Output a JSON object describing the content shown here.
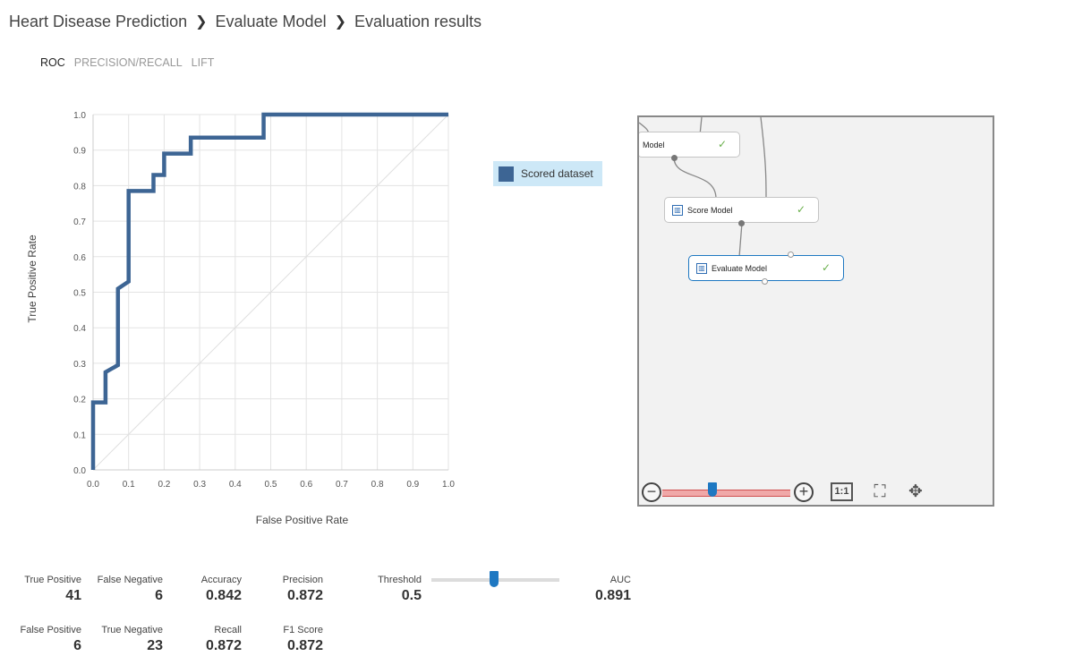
{
  "breadcrumb": {
    "items": [
      "Heart Disease Prediction",
      "Evaluate Model",
      "Evaluation results"
    ],
    "separator": "❯"
  },
  "tabs": [
    {
      "label": "ROC",
      "active": true
    },
    {
      "label": "PRECISION/RECALL",
      "active": false
    },
    {
      "label": "LIFT",
      "active": false
    }
  ],
  "legend": {
    "label": "Scored dataset",
    "color": "#3d6594"
  },
  "chart_data": {
    "type": "line",
    "title": "",
    "xlabel": "False Positive Rate",
    "ylabel": "True Positive Rate",
    "xlim": [
      0,
      1
    ],
    "ylim": [
      0,
      1
    ],
    "xticks": [
      "0.0",
      "0.1",
      "0.2",
      "0.3",
      "0.4",
      "0.5",
      "0.6",
      "0.7",
      "0.8",
      "0.9",
      "1.0"
    ],
    "yticks": [
      "0.0",
      "0.1",
      "0.2",
      "0.3",
      "0.4",
      "0.5",
      "0.6",
      "0.7",
      "0.8",
      "0.9",
      "1.0"
    ],
    "grid": true,
    "series": [
      {
        "name": "Scored dataset",
        "color": "#3d6594",
        "x": [
          0.0,
          0.0,
          0.035,
          0.035,
          0.07,
          0.07,
          0.1,
          0.1,
          0.17,
          0.17,
          0.2,
          0.2,
          0.275,
          0.275,
          0.48,
          0.48,
          1.0
        ],
        "y": [
          0.0,
          0.19,
          0.19,
          0.275,
          0.295,
          0.51,
          0.53,
          0.785,
          0.785,
          0.83,
          0.83,
          0.89,
          0.89,
          0.935,
          0.935,
          1.0,
          1.0
        ]
      }
    ],
    "diagonal": true
  },
  "canvas": {
    "nodes": [
      {
        "label": "Model",
        "icon": "model-icon",
        "status": "✓"
      },
      {
        "label": "Score Model",
        "icon": "score-model-icon",
        "status": "✓"
      },
      {
        "label": "Evaluate Model",
        "icon": "evaluate-model-icon",
        "status": "✓"
      }
    ],
    "zoom": {
      "minus": "−",
      "plus": "+",
      "one_to_one": "1:1",
      "fit_icon": "fit-to-screen-icon",
      "pan_icon": "pan-icon"
    }
  },
  "metrics": {
    "true_positive": {
      "label": "True Positive",
      "value": "41"
    },
    "false_negative": {
      "label": "False Negative",
      "value": "6"
    },
    "accuracy": {
      "label": "Accuracy",
      "value": "0.842"
    },
    "precision": {
      "label": "Precision",
      "value": "0.872"
    },
    "false_positive": {
      "label": "False Positive",
      "value": "6"
    },
    "true_negative": {
      "label": "True Negative",
      "value": "23"
    },
    "recall": {
      "label": "Recall",
      "value": "0.872"
    },
    "f1_score": {
      "label": "F1 Score",
      "value": "0.872"
    },
    "threshold": {
      "label": "Threshold",
      "value": "0.5"
    },
    "auc": {
      "label": "AUC",
      "value": "0.891"
    }
  }
}
